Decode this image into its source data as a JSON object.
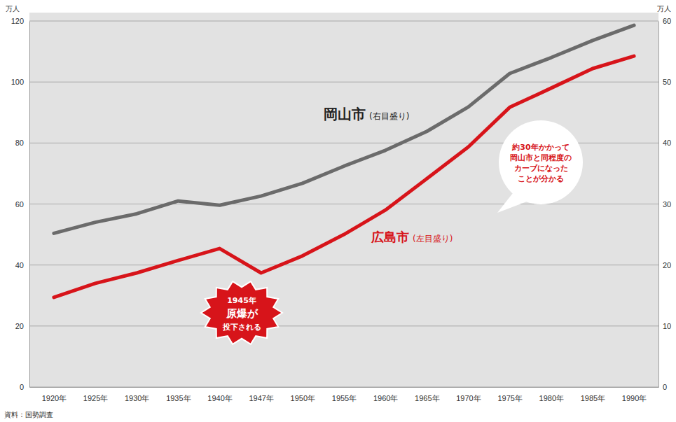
{
  "chart_data": {
    "type": "line",
    "categories": [
      "1920年",
      "1925年",
      "1930年",
      "1935年",
      "1940年",
      "1947年",
      "1950年",
      "1955年",
      "1960年",
      "1965年",
      "1970年",
      "1975年",
      "1980年",
      "1985年",
      "1990年"
    ],
    "series": [
      {
        "name": "岡山市",
        "name_note": "(右目盛り)",
        "color": "#6b6b6b",
        "axis": "y2",
        "values": [
          25.2,
          27,
          28.4,
          30.5,
          29.8,
          31.3,
          33.4,
          36.2,
          38.8,
          41.9,
          45.9,
          51.4,
          54,
          56.8,
          59.3
        ]
      },
      {
        "name": "広島市",
        "name_note": "(左目盛り)",
        "color": "#d7141a",
        "values": [
          29.4,
          34,
          37.4,
          41.5,
          45.4,
          37.4,
          43,
          50,
          58,
          68.3,
          78.7,
          91.7,
          98,
          104.4,
          108.5
        ]
      }
    ],
    "ylim": [
      0,
      120
    ],
    "yticks": [
      0,
      20,
      40,
      60,
      80,
      100,
      120
    ],
    "y2lim": [
      0,
      60
    ],
    "y2ticks": [
      0,
      10,
      20,
      30,
      40,
      50,
      60
    ],
    "y_unit": "万人",
    "y2_unit": "万人",
    "grid": true,
    "annotations": [
      {
        "text": [
          "1945年",
          "原爆が",
          "投下される"
        ]
      },
      {
        "text": [
          "約30年かかって",
          "岡山市と同程度の",
          "カーブになった",
          "ことが分かる"
        ]
      }
    ],
    "source": "資料：国勢調査"
  }
}
